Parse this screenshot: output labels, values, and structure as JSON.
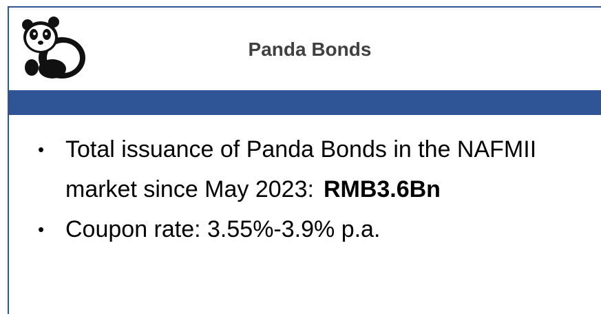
{
  "header": {
    "title": "Panda Bonds"
  },
  "bullets": [
    {
      "text": "Total issuance of Panda Bonds in the NAFMII market since May 2023:",
      "emphasis": "RMB3.6Bn"
    },
    {
      "text": "Coupon rate: 3.55%-3.9% p.a."
    }
  ]
}
